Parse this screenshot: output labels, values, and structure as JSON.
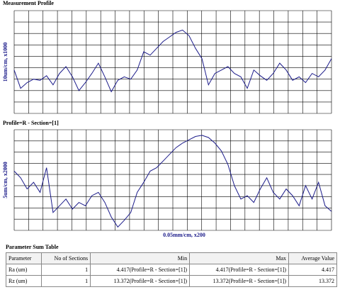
{
  "chart_data": [
    {
      "type": "line",
      "title": "Measurement Profile",
      "y_label": "10um/cm, x1000",
      "color": "#1c1c8a",
      "ylim": [
        0,
        9
      ],
      "values": [
        3.8,
        2.2,
        2.7,
        3.0,
        2.9,
        3.3,
        2.5,
        3.5,
        4.1,
        3.2,
        2.0,
        2.7,
        3.5,
        4.4,
        3.2,
        1.9,
        2.9,
        3.2,
        3.0,
        3.8,
        5.4,
        5.1,
        5.7,
        6.3,
        6.7,
        7.1,
        7.3,
        6.8,
        5.7,
        4.8,
        2.5,
        3.5,
        3.8,
        4.1,
        3.5,
        3.2,
        2.2,
        3.8,
        3.3,
        2.9,
        3.5,
        4.4,
        3.8,
        2.9,
        3.2,
        2.7,
        3.5,
        3.2,
        3.8,
        4.8
      ]
    },
    {
      "type": "line",
      "title": "Profile=R - Section=[1]",
      "y_label": "5um/cm, x2000",
      "x_label": "0.05mm/cm, x200",
      "color": "#1c1c8a",
      "ylim": [
        0,
        9
      ],
      "values": [
        5.3,
        4.7,
        3.7,
        4.3,
        3.4,
        5.6,
        1.6,
        2.2,
        2.8,
        1.9,
        2.5,
        2.2,
        3.1,
        3.4,
        2.5,
        1.2,
        0.3,
        0.9,
        1.6,
        3.4,
        4.3,
        5.3,
        5.6,
        6.2,
        6.8,
        7.4,
        7.8,
        8.1,
        8.4,
        8.5,
        8.3,
        7.8,
        7.1,
        5.9,
        4.0,
        2.8,
        3.1,
        2.5,
        3.7,
        4.7,
        3.4,
        2.8,
        3.7,
        3.1,
        2.2,
        4.0,
        2.8,
        4.3,
        2.2,
        1.7
      ]
    }
  ],
  "table": {
    "title": "Parameter Sum Table",
    "headers": [
      "Parameter",
      "No of Sections",
      "Min",
      "Max",
      "Average Value"
    ],
    "rows": [
      [
        "Ra (um)",
        1,
        "4.417(Profile=R - Section=[1])",
        "4.417(Profile=R - Section=[1])",
        4.417
      ],
      [
        "Rz (um)",
        1,
        "13.372(Profile=R - Section=[1])",
        "13.372(Profile=R - Section=[1])",
        13.372
      ]
    ]
  }
}
